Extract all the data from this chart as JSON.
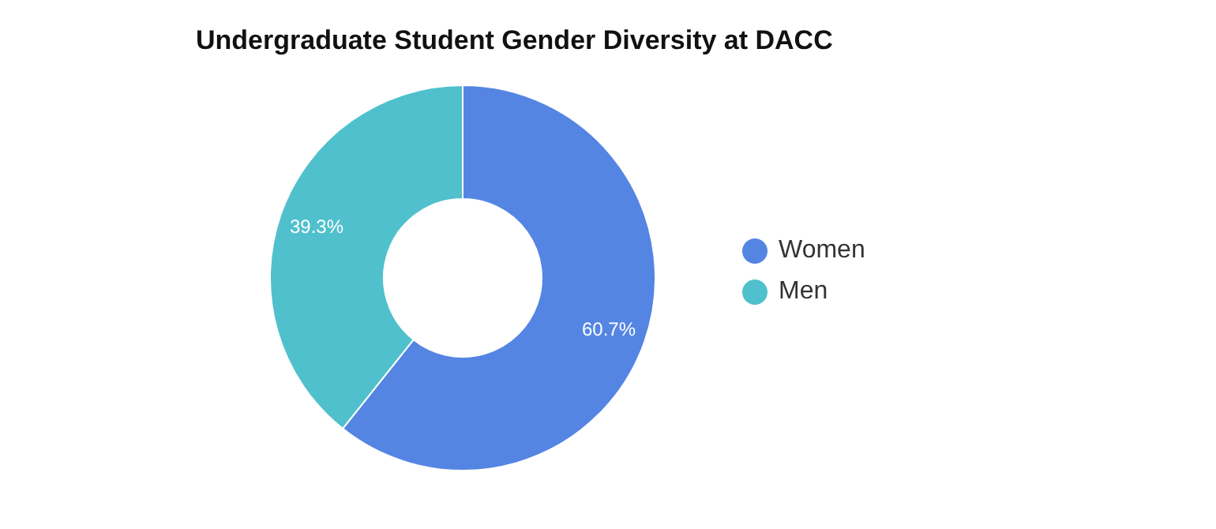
{
  "chart_data": {
    "type": "donut",
    "title": "Undergraduate Student Gender Diversity at DACC",
    "categories": [
      "Women",
      "Men"
    ],
    "values": [
      60.7,
      39.3
    ],
    "colors": [
      "#5485e3",
      "#50c0cd"
    ],
    "value_labels": [
      "60.7%",
      "39.3%"
    ],
    "legend": "right"
  }
}
